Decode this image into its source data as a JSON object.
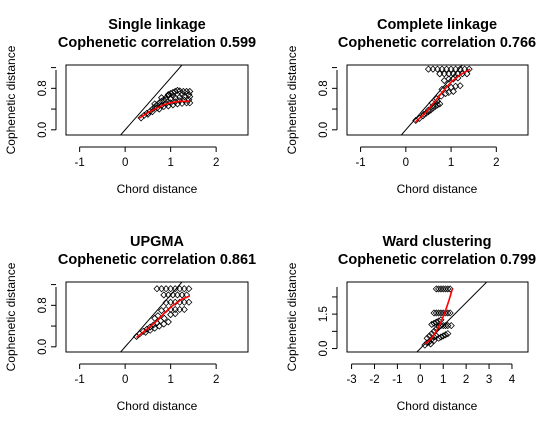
{
  "chart_data": [
    {
      "type": "scatter",
      "title": "Single linkage",
      "subtitle": "Cophenetic correlation 0.599",
      "xlabel": "Chord distance",
      "ylabel": "Cophenetic distance",
      "xlim": [
        -1.3,
        2.7
      ],
      "ylim": [
        -0.1,
        1.25
      ],
      "xticks": [
        -1,
        0,
        1,
        2
      ],
      "yticks": [
        0.0,
        0.8
      ],
      "xtick_labels": [
        "-1",
        "0",
        "1",
        "2"
      ],
      "ytick_labels": [
        "0.0",
        "0.8"
      ],
      "reference_line": "y = x",
      "points": [
        [
          0.35,
          0.23
        ],
        [
          0.42,
          0.28
        ],
        [
          0.48,
          0.32
        ],
        [
          0.55,
          0.36
        ],
        [
          0.6,
          0.4
        ],
        [
          0.65,
          0.44
        ],
        [
          0.7,
          0.48
        ],
        [
          0.75,
          0.52
        ],
        [
          0.8,
          0.55
        ],
        [
          0.85,
          0.58
        ],
        [
          0.9,
          0.62
        ],
        [
          0.95,
          0.66
        ],
        [
          1.0,
          0.7
        ],
        [
          1.05,
          0.72
        ],
        [
          1.1,
          0.74
        ],
        [
          1.15,
          0.76
        ],
        [
          1.2,
          0.75
        ],
        [
          1.28,
          0.74
        ],
        [
          1.35,
          0.74
        ],
        [
          1.42,
          0.74
        ],
        [
          0.5,
          0.3
        ],
        [
          0.6,
          0.35
        ],
        [
          0.7,
          0.42
        ],
        [
          0.8,
          0.47
        ],
        [
          0.9,
          0.5
        ],
        [
          1.0,
          0.52
        ],
        [
          1.1,
          0.54
        ],
        [
          1.2,
          0.56
        ],
        [
          1.3,
          0.57
        ],
        [
          1.4,
          0.58
        ],
        [
          0.75,
          0.4
        ],
        [
          0.85,
          0.45
        ],
        [
          0.95,
          0.46
        ],
        [
          1.05,
          0.48
        ],
        [
          1.15,
          0.5
        ],
        [
          1.25,
          0.51
        ],
        [
          1.35,
          0.52
        ],
        [
          1.42,
          0.52
        ],
        [
          0.9,
          0.58
        ],
        [
          1.0,
          0.6
        ],
        [
          1.1,
          0.62
        ],
        [
          1.2,
          0.63
        ],
        [
          1.3,
          0.64
        ],
        [
          1.42,
          0.64
        ],
        [
          0.65,
          0.5
        ],
        [
          0.8,
          0.62
        ],
        [
          0.95,
          0.68
        ],
        [
          1.05,
          0.66
        ],
        [
          1.25,
          0.68
        ],
        [
          1.4,
          0.68
        ]
      ],
      "smooth": [
        [
          0.3,
          0.22
        ],
        [
          0.5,
          0.33
        ],
        [
          0.7,
          0.42
        ],
        [
          0.9,
          0.5
        ],
        [
          1.05,
          0.53
        ],
        [
          1.2,
          0.55
        ],
        [
          1.42,
          0.55
        ]
      ],
      "point_color": "#000000",
      "smooth_color": "#ff0000"
    },
    {
      "type": "scatter",
      "title": "Complete linkage",
      "subtitle": "Cophenetic correlation 0.766",
      "xlabel": "Chord distance",
      "ylabel": "Cophenetic distance",
      "xlim": [
        -1.3,
        2.7
      ],
      "ylim": [
        -0.1,
        1.25
      ],
      "xticks": [
        -1,
        0,
        1,
        2
      ],
      "yticks": [
        0.0,
        0.8
      ],
      "xtick_labels": [
        "-1",
        "0",
        "1",
        "2"
      ],
      "ytick_labels": [
        "0.0",
        "0.8"
      ],
      "reference_line": "y = x",
      "points": [
        [
          0.22,
          0.18
        ],
        [
          0.3,
          0.22
        ],
        [
          0.38,
          0.27
        ],
        [
          0.45,
          0.32
        ],
        [
          0.5,
          0.35
        ],
        [
          0.55,
          0.38
        ],
        [
          0.6,
          0.42
        ],
        [
          0.65,
          0.45
        ],
        [
          0.7,
          0.48
        ],
        [
          0.75,
          0.5
        ],
        [
          0.4,
          0.3
        ],
        [
          0.5,
          0.38
        ],
        [
          0.6,
          0.46
        ],
        [
          0.7,
          0.55
        ],
        [
          0.58,
          0.52
        ],
        [
          0.68,
          0.6
        ],
        [
          0.78,
          0.65
        ],
        [
          0.88,
          0.7
        ],
        [
          0.95,
          0.72
        ],
        [
          1.05,
          0.74
        ],
        [
          0.8,
          0.78
        ],
        [
          0.9,
          0.8
        ],
        [
          1.0,
          0.82
        ],
        [
          1.1,
          0.84
        ],
        [
          1.2,
          0.85
        ],
        [
          0.5,
          1.17
        ],
        [
          0.6,
          1.17
        ],
        [
          0.7,
          1.17
        ],
        [
          0.8,
          1.17
        ],
        [
          0.9,
          1.17
        ],
        [
          1.0,
          1.17
        ],
        [
          1.1,
          1.17
        ],
        [
          1.2,
          1.17
        ],
        [
          1.3,
          1.17
        ],
        [
          1.4,
          1.17
        ],
        [
          0.75,
          1.08
        ],
        [
          0.85,
          1.08
        ],
        [
          0.95,
          1.08
        ],
        [
          1.05,
          1.08
        ],
        [
          1.15,
          1.08
        ],
        [
          1.25,
          1.08
        ],
        [
          1.35,
          1.08
        ],
        [
          0.85,
          0.95
        ],
        [
          0.95,
          0.98
        ],
        [
          1.05,
          0.98
        ],
        [
          1.15,
          1.0
        ]
      ],
      "smooth": [
        [
          0.2,
          0.14
        ],
        [
          0.4,
          0.3
        ],
        [
          0.6,
          0.5
        ],
        [
          0.8,
          0.72
        ],
        [
          1.0,
          0.92
        ],
        [
          1.2,
          1.06
        ],
        [
          1.42,
          1.17
        ]
      ],
      "point_color": "#000000",
      "smooth_color": "#ff0000"
    },
    {
      "type": "scatter",
      "title": "UPGMA",
      "subtitle": "Cophenetic correlation 0.861",
      "xlabel": "Chord distance",
      "ylabel": "Cophenetic distance",
      "xlim": [
        -1.3,
        2.7
      ],
      "ylim": [
        -0.1,
        1.25
      ],
      "xticks": [
        -1,
        0,
        1,
        2
      ],
      "yticks": [
        0.0,
        0.8
      ],
      "xtick_labels": [
        "-1",
        "0",
        "1",
        "2"
      ],
      "ytick_labels": [
        "0.0",
        "0.8"
      ],
      "reference_line": "y = x",
      "points": [
        [
          0.25,
          0.2
        ],
        [
          0.32,
          0.25
        ],
        [
          0.4,
          0.3
        ],
        [
          0.48,
          0.34
        ],
        [
          0.55,
          0.38
        ],
        [
          0.62,
          0.42
        ],
        [
          0.7,
          0.46
        ],
        [
          0.78,
          0.5
        ],
        [
          0.86,
          0.55
        ],
        [
          0.45,
          0.28
        ],
        [
          0.55,
          0.32
        ],
        [
          0.65,
          0.36
        ],
        [
          0.75,
          0.4
        ],
        [
          0.85,
          0.44
        ],
        [
          0.95,
          0.48
        ],
        [
          0.8,
          0.7
        ],
        [
          0.9,
          0.72
        ],
        [
          1.0,
          0.72
        ],
        [
          1.1,
          0.72
        ],
        [
          1.2,
          0.72
        ],
        [
          1.3,
          0.72
        ],
        [
          0.9,
          0.85
        ],
        [
          1.0,
          0.86
        ],
        [
          1.1,
          0.86
        ],
        [
          1.2,
          0.86
        ],
        [
          1.3,
          0.86
        ],
        [
          1.4,
          0.86
        ],
        [
          0.7,
          1.12
        ],
        [
          0.8,
          1.12
        ],
        [
          0.9,
          1.12
        ],
        [
          1.0,
          1.12
        ],
        [
          1.1,
          1.12
        ],
        [
          1.2,
          1.12
        ],
        [
          1.3,
          1.12
        ],
        [
          1.4,
          1.12
        ],
        [
          0.85,
          1.0
        ],
        [
          0.95,
          1.0
        ],
        [
          1.05,
          1.0
        ],
        [
          1.15,
          1.0
        ],
        [
          1.25,
          1.0
        ],
        [
          1.35,
          1.0
        ],
        [
          1.0,
          0.62
        ],
        [
          1.1,
          0.64
        ],
        [
          0.65,
          0.55
        ],
        [
          0.72,
          0.6
        ]
      ],
      "smooth": [
        [
          0.25,
          0.18
        ],
        [
          0.45,
          0.32
        ],
        [
          0.65,
          0.46
        ],
        [
          0.85,
          0.64
        ],
        [
          1.05,
          0.8
        ],
        [
          1.25,
          0.92
        ],
        [
          1.42,
          0.98
        ]
      ],
      "point_color": "#000000",
      "smooth_color": "#ff0000"
    },
    {
      "type": "scatter",
      "title": "Ward clustering",
      "subtitle": "Cophenetic correlation 0.799",
      "xlabel": "Chord distance",
      "ylabel": "Cophenetic distance",
      "xlim": [
        -3.2,
        4.7
      ],
      "ylim": [
        -0.15,
        2.9
      ],
      "xticks": [
        -3,
        -2,
        -1,
        0,
        1,
        2,
        3,
        4
      ],
      "yticks": [
        0.0,
        1.5
      ],
      "xtick_labels": [
        "-3",
        "-2",
        "-1",
        "0",
        "1",
        "2",
        "3",
        "4"
      ],
      "ytick_labels": [
        "0.0",
        "1.5"
      ],
      "reference_line": "y = x",
      "points": [
        [
          0.2,
          0.15
        ],
        [
          0.3,
          0.25
        ],
        [
          0.4,
          0.3
        ],
        [
          0.5,
          0.4
        ],
        [
          0.6,
          0.5
        ],
        [
          0.7,
          0.55
        ],
        [
          0.3,
          0.45
        ],
        [
          0.4,
          0.55
        ],
        [
          0.5,
          0.65
        ],
        [
          0.6,
          0.75
        ],
        [
          0.7,
          0.85
        ],
        [
          0.8,
          0.95
        ],
        [
          0.9,
          1.0
        ],
        [
          1.0,
          1.0
        ],
        [
          1.1,
          1.0
        ],
        [
          1.2,
          1.0
        ],
        [
          1.35,
          1.0
        ],
        [
          0.5,
          1.05
        ],
        [
          0.6,
          1.1
        ],
        [
          0.7,
          1.15
        ],
        [
          0.8,
          1.2
        ],
        [
          0.9,
          1.25
        ],
        [
          0.6,
          1.55
        ],
        [
          0.7,
          1.55
        ],
        [
          0.8,
          1.55
        ],
        [
          0.9,
          1.55
        ],
        [
          1.0,
          1.55
        ],
        [
          1.1,
          1.55
        ],
        [
          1.2,
          1.55
        ],
        [
          1.3,
          1.55
        ],
        [
          0.7,
          2.6
        ],
        [
          0.8,
          2.6
        ],
        [
          0.9,
          2.6
        ],
        [
          1.0,
          2.6
        ],
        [
          1.1,
          2.6
        ],
        [
          1.2,
          2.6
        ],
        [
          1.3,
          2.6
        ],
        [
          0.8,
          0.45
        ],
        [
          0.9,
          0.5
        ],
        [
          1.0,
          0.55
        ],
        [
          1.1,
          0.6
        ],
        [
          1.2,
          0.65
        ],
        [
          0.6,
          0.35
        ],
        [
          0.45,
          0.2
        ]
      ],
      "smooth": [
        [
          0.2,
          0.2
        ],
        [
          0.45,
          0.4
        ],
        [
          0.7,
          0.75
        ],
        [
          0.9,
          1.15
        ],
        [
          1.1,
          1.65
        ],
        [
          1.25,
          2.1
        ],
        [
          1.4,
          2.6
        ]
      ],
      "point_color": "#000000",
      "smooth_color": "#ff0000"
    }
  ]
}
